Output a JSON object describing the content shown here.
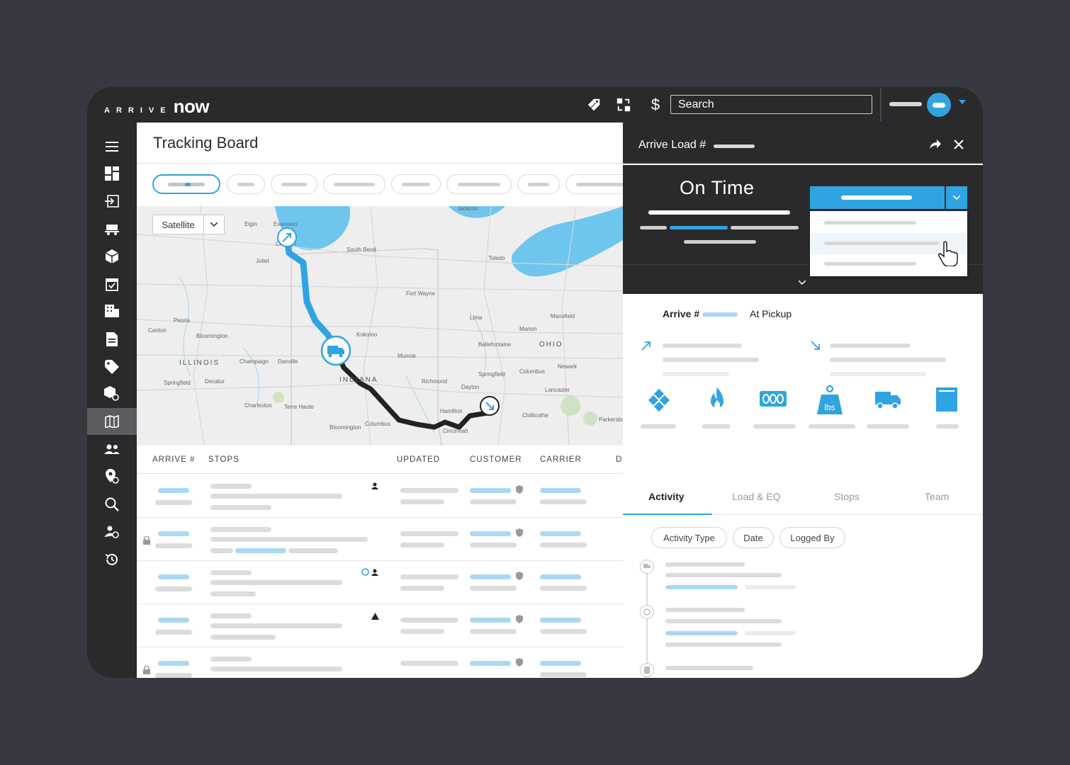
{
  "app": {
    "brand_prefix": "ARRIVE",
    "brand_name": "now",
    "search_placeholder": "Search"
  },
  "main": {
    "title": "Tracking Board",
    "map_type_label": "Satellite",
    "columns": [
      "ARRIVE #",
      "STOPS",
      "UPDATED",
      "CUSTOMER",
      "CARRIER",
      "D"
    ]
  },
  "map_labels": {
    "chicago": "Chicago",
    "evanston": "Evanston",
    "elgin": "Elgin",
    "joliet": "Joliet",
    "south_bend": "South Bend",
    "toledo": "Toledo",
    "fort_wayne": "Fort Wayne",
    "illinois": "ILLINOIS",
    "indiana": "INDIANA",
    "ohio": "OHIO",
    "peoria": "Peoria",
    "bloomington": "Bloomington",
    "champaign": "Champaign",
    "springfield_il": "Springfield",
    "decatur": "Decatur",
    "terre_haute": "Terre Haute",
    "kokomo": "Kokomo",
    "muncie": "Muncie",
    "lima": "Lima",
    "mansfield": "Mansfield",
    "marion": "Marion",
    "bellefontaine": "Bellefontaine",
    "columbus": "Columbus",
    "newark": "Newark",
    "springfield_oh": "Springfield",
    "dayton": "Dayton",
    "richmond": "Richmond",
    "hamilton": "Hamilton",
    "cincinnati": "Cincinnati",
    "chillicothe": "Chillicothe",
    "lancaster": "Lancaster",
    "canton": "Canton",
    "charleston": "Charleston",
    "bloomington_in": "Bloomington",
    "columbus_in": "Columbus",
    "danville": "Danville",
    "jackson": "Jackson",
    "parkersburg": "Parkersbu"
  },
  "panel": {
    "title": "Arrive Load #",
    "status": "On Time",
    "arrive_label": "Arrive #",
    "stage": "At Pickup",
    "tabs": [
      "Activity",
      "Load & EQ",
      "Stops",
      "Team"
    ],
    "filters": [
      "Activity Type",
      "Date",
      "Logged By"
    ],
    "weight_unit": "lbs"
  },
  "colors": {
    "accent": "#30a4e3",
    "dark": "#2a2a2c",
    "route_done": "#30a4e3",
    "route_remaining": "#222222"
  }
}
